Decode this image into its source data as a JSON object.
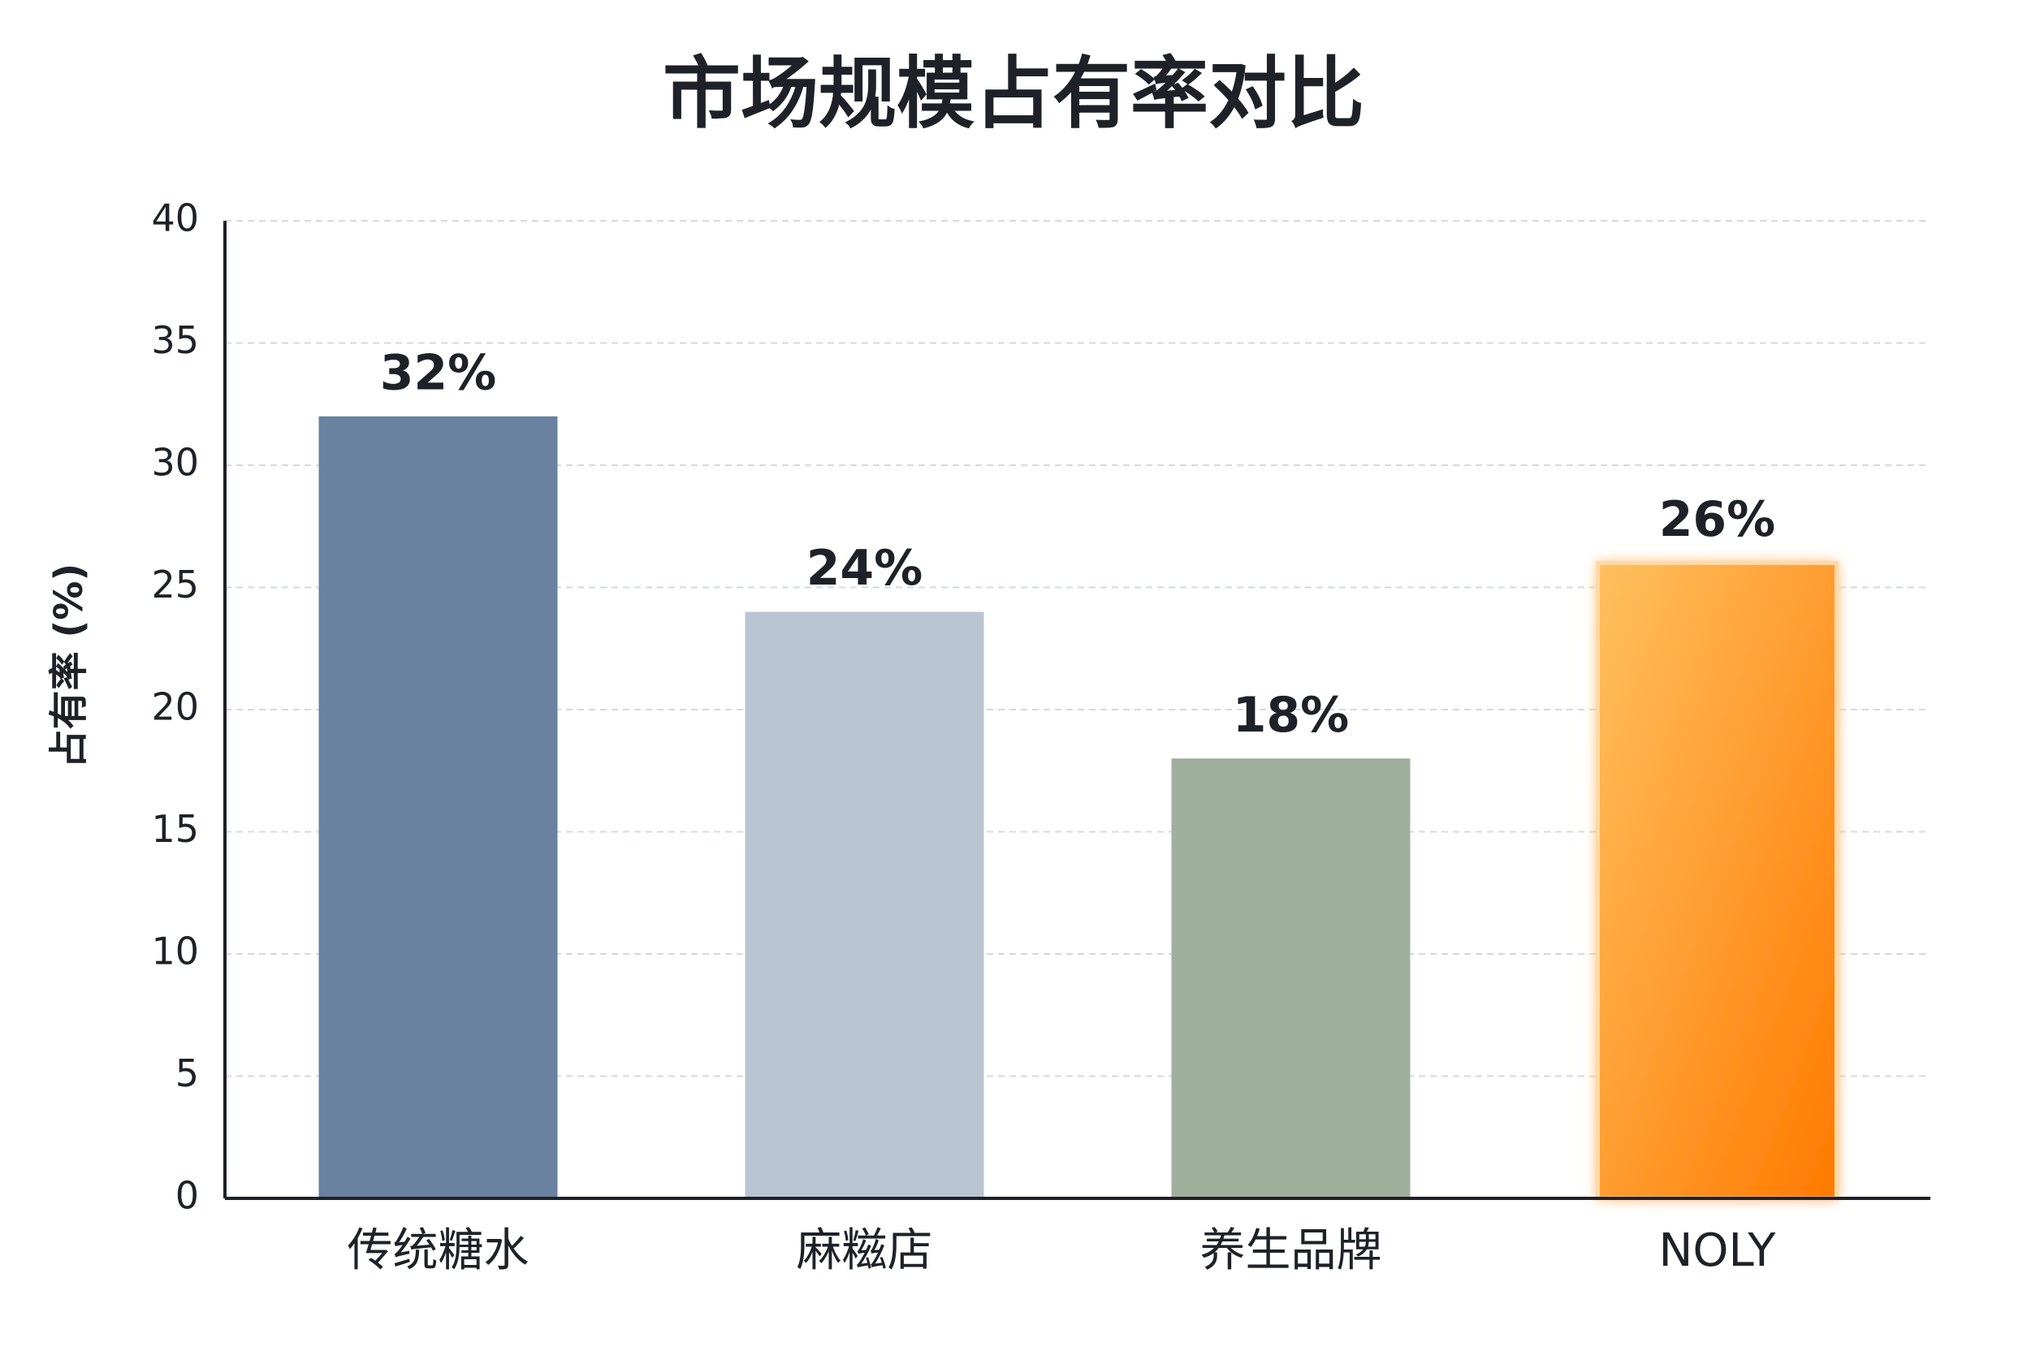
{
  "chart_data": {
    "type": "bar",
    "title": "市场规模占有率对比",
    "y_label": "占有率 (%)",
    "categories": [
      "传统糖水",
      "麻糍店",
      "养生品牌",
      "NOLY"
    ],
    "values": [
      32,
      24,
      18,
      26
    ],
    "value_labels": [
      "32%",
      "24%",
      "18%",
      "26%"
    ],
    "colors": [
      "#6882a0",
      "#b9c5d3",
      "#9fb09c",
      "#ff8a12"
    ],
    "ylim": [
      0,
      40
    ],
    "yticks": [
      0,
      5,
      10,
      15,
      20,
      25,
      30,
      35,
      40
    ],
    "grid": true
  }
}
